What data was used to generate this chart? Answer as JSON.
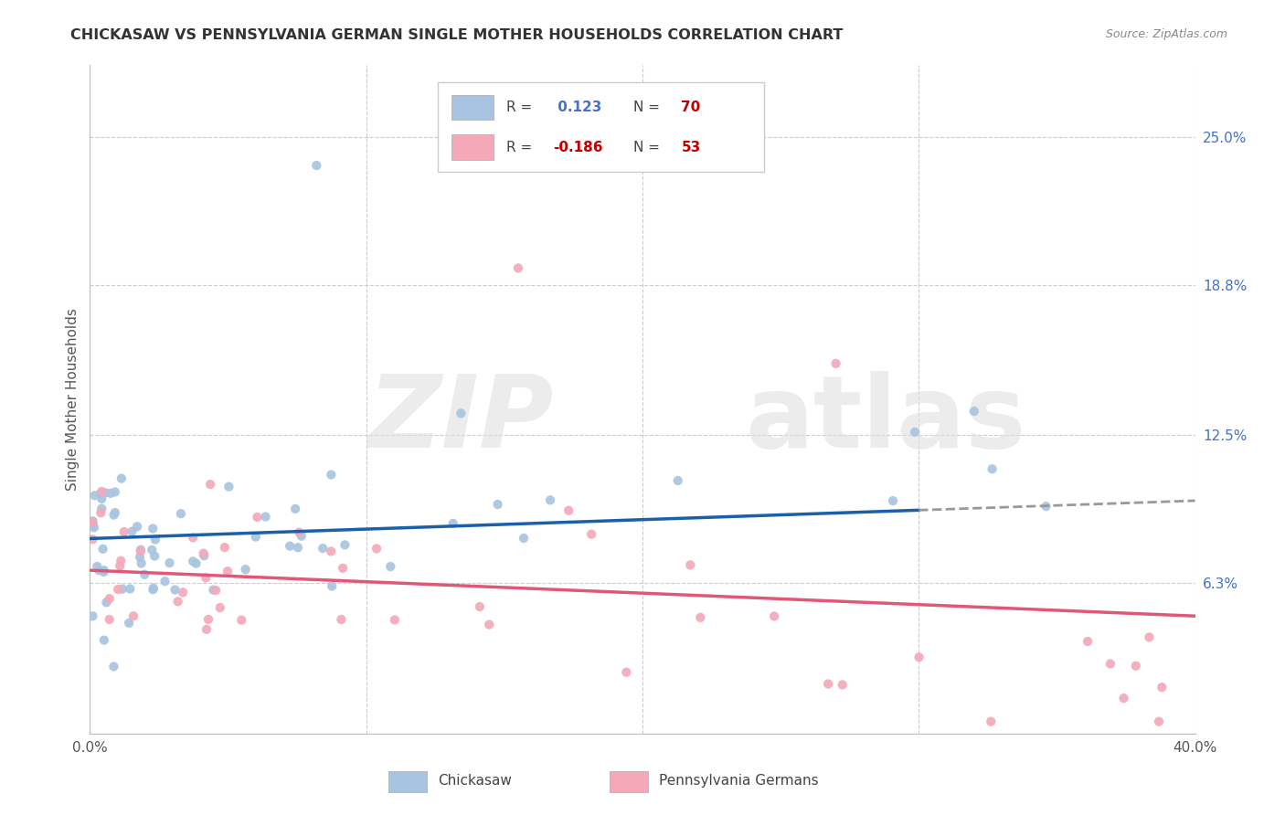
{
  "title": "CHICKASAW VS PENNSYLVANIA GERMAN SINGLE MOTHER HOUSEHOLDS CORRELATION CHART",
  "source": "Source: ZipAtlas.com",
  "ylabel": "Single Mother Households",
  "ytick_labels": [
    "25.0%",
    "18.8%",
    "12.5%",
    "6.3%"
  ],
  "ytick_values": [
    0.25,
    0.188,
    0.125,
    0.063
  ],
  "xmin": 0.0,
  "xmax": 0.4,
  "ymin": 0.0,
  "ymax": 0.28,
  "chickasaw_color": "#a8c4e0",
  "pa_german_color": "#f4a8b8",
  "trend_chickasaw_color": "#1a5fa8",
  "trend_pa_german_color": "#e05878",
  "trend_chickasaw_dashed_color": "#999999",
  "r_chickasaw": 0.123,
  "n_chickasaw": 70,
  "r_pa_german": -0.186,
  "n_pa_german": 53,
  "legend_r1_label": "R = ",
  "legend_r1_val": " 0.123",
  "legend_n1_label": "N = ",
  "legend_n1_val": "70",
  "legend_r2_label": "R = ",
  "legend_r2_val": "-0.186",
  "legend_n2_label": "N = ",
  "legend_n2_val": "53",
  "r_color": "#4472c4",
  "n_color": "#c00000",
  "r2_color": "#c00000",
  "watermark_zip": "ZIP",
  "watermark_atlas": "atlas",
  "bottom_label1": "Chickasaw",
  "bottom_label2": "Pennsylvania Germans"
}
